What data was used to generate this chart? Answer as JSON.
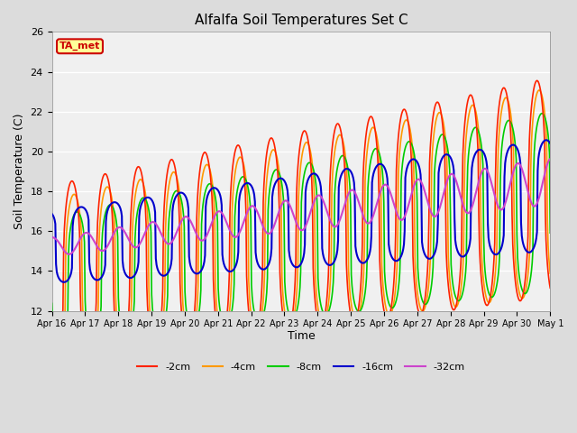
{
  "title": "Alfalfa Soil Temperatures Set C",
  "ylabel": "Soil Temperature (C)",
  "xlabel": "Time",
  "ylim": [
    12,
    26
  ],
  "background_color": "#dcdcdc",
  "plot_bg_color": "#f0f0f0",
  "grid_color": "white",
  "series": {
    "cm2": {
      "label": "-2cm",
      "color": "#ff2200",
      "lw": 1.2
    },
    "cm4": {
      "label": "-4cm",
      "color": "#ff9900",
      "lw": 1.2
    },
    "cm8": {
      "label": "-8cm",
      "color": "#00cc00",
      "lw": 1.2
    },
    "cm16": {
      "label": "-16cm",
      "color": "#0000cc",
      "lw": 1.5
    },
    "cm32": {
      "label": "-32cm",
      "color": "#cc44cc",
      "lw": 1.5
    }
  },
  "ta_met_box": {
    "text": "TA_met",
    "facecolor": "#ffff99",
    "edgecolor": "#cc0000",
    "textcolor": "#cc0000"
  },
  "tick_labels": [
    "Apr 16",
    "Apr 17",
    "Apr 18",
    "Apr 19",
    "Apr 20",
    "Apr 21",
    "Apr 22",
    "Apr 23",
    "Apr 24",
    "Apr 25",
    "Apr 26",
    "Apr 27",
    "Apr 28",
    "Apr 29",
    "Apr 30",
    "May 1"
  ],
  "yticks": [
    12,
    14,
    16,
    18,
    20,
    22,
    24,
    26
  ],
  "figsize": [
    6.4,
    4.8
  ],
  "dpi": 100
}
